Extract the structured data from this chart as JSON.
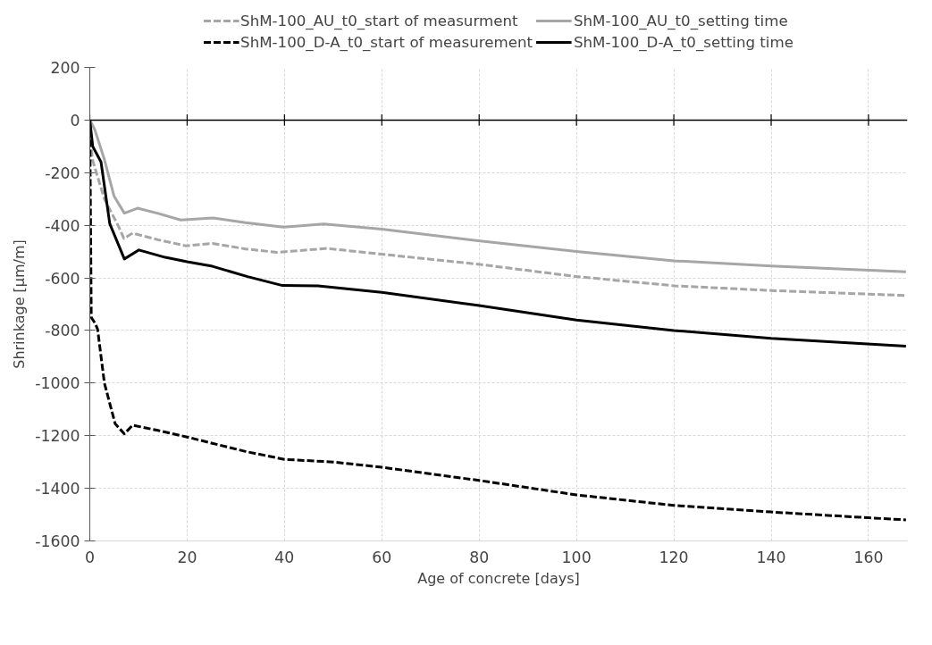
{
  "chart_data": {
    "type": "line",
    "xlabel": "Age of concrete [days]",
    "ylabel": "Shrinkage [µm/m]",
    "xlim": [
      0,
      168
    ],
    "xticks": [
      0,
      20,
      40,
      60,
      80,
      100,
      120,
      140,
      160
    ],
    "ylim": [
      -1600,
      200
    ],
    "yticks": [
      -1600,
      -1400,
      -1200,
      -1000,
      -800,
      -600,
      -400,
      -200,
      0,
      200
    ],
    "grid": true,
    "legend": "top",
    "ref_lines": [
      {
        "axis": "y",
        "value": 0,
        "color": "#000000"
      }
    ],
    "series": [
      {
        "name": "ShM-100_AU_t0_start of measurment",
        "color": "#a6a6a6",
        "line_style": "dashed",
        "x": [
          0,
          0.5,
          3,
          5.9,
          7,
          8.8,
          14,
          19.7,
          25.2,
          32,
          38.5,
          48.7,
          60,
          79.8,
          100,
          120,
          140,
          167.7
        ],
        "values": [
          0,
          -148,
          -300,
          -404,
          -450,
          -430,
          -455,
          -478,
          -469,
          -490,
          -503,
          -488,
          -510,
          -548,
          -595,
          -630,
          -648,
          -667
        ]
      },
      {
        "name": "ShM-100_AU_t0_setting time",
        "color": "#a6a6a6",
        "line_style": "solid",
        "x": [
          0,
          1,
          3,
          5,
          7.1,
          9.8,
          14,
          18.7,
          25.3,
          32,
          39.8,
          48.1,
          60,
          79.8,
          100,
          120,
          140,
          167.7
        ],
        "values": [
          0,
          -35,
          -150,
          -290,
          -354,
          -335,
          -355,
          -380,
          -372,
          -390,
          -407,
          -395,
          -415,
          -459,
          -500,
          -535,
          -555,
          -577
        ]
      },
      {
        "name": "ShM-100_D-A_t0_start of measurement",
        "color": "#000000",
        "line_style": "dashed",
        "x": [
          0,
          0.3,
          1.1,
          1.6,
          3,
          5.2,
          7.1,
          8.8,
          14,
          20,
          25,
          32,
          40,
          50,
          60,
          80,
          100,
          120,
          140,
          160,
          167.7
        ],
        "values": [
          0,
          -750,
          -773,
          -795,
          -1000,
          -1154,
          -1193,
          -1160,
          -1180,
          -1205,
          -1228,
          -1260,
          -1290,
          -1300,
          -1320,
          -1370,
          -1425,
          -1465,
          -1490,
          -1512,
          -1520
        ]
      },
      {
        "name": "ShM-100_D-A_t0_setting time",
        "color": "#000000",
        "line_style": "solid",
        "x": [
          0,
          0.6,
          2.3,
          4.1,
          7.1,
          10.1,
          15.5,
          20,
          25.2,
          32.4,
          39.6,
          46.9,
          60,
          80,
          100,
          120,
          140,
          167.7
        ],
        "values": [
          0,
          -100,
          -159,
          -394,
          -528,
          -494,
          -522,
          -539,
          -556,
          -595,
          -629,
          -630,
          -655,
          -705,
          -760,
          -800,
          -830,
          -860
        ]
      }
    ]
  }
}
